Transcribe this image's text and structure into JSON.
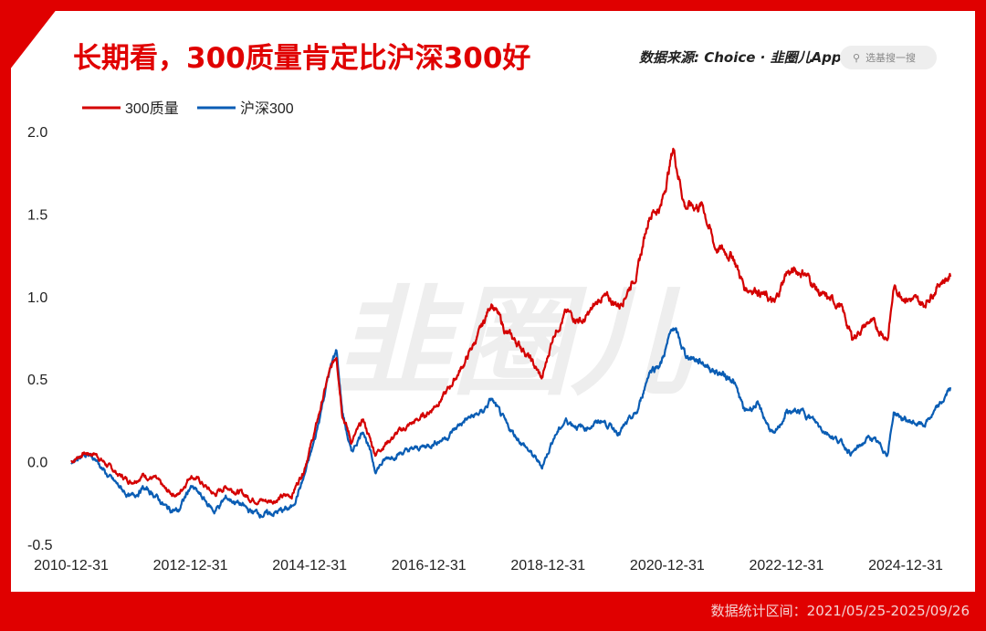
{
  "title": "长期看，300质量肯定比沪深300好",
  "source": {
    "label": "数据来源: Choice ·",
    "logo": "韭圈儿App"
  },
  "search": {
    "placeholder": "选基搜一搜"
  },
  "footer": "数据统计区间：2021/05/25-2025/09/26",
  "watermark": "韭圈儿",
  "colors": {
    "red": "#d40000",
    "blue": "#0a5db4",
    "accent": "#e00000"
  },
  "chart_data": {
    "type": "line",
    "title": "长期看，300质量肯定比沪深300好",
    "legend": "top-left",
    "ylim": [
      -0.5,
      2.0
    ],
    "yticks": [
      "2.0",
      "1.5",
      "1.0",
      "0.5",
      "0.0",
      "-0.5"
    ],
    "ytick_values": [
      2.0,
      1.5,
      1.0,
      0.5,
      0.0,
      -0.5
    ],
    "xlim": [
      2011.0,
      2025.8
    ],
    "xticks": [
      "2010-12-31",
      "2012-12-31",
      "2014-12-31",
      "2016-12-31",
      "2018-12-31",
      "2020-12-31",
      "2022-12-31",
      "2024-12-31"
    ],
    "xtick_values": [
      2011,
      2013,
      2015,
      2017,
      2019,
      2021,
      2023,
      2025
    ],
    "series": [
      {
        "name": "300质量",
        "color": "#d40000",
        "points": [
          [
            2011.0,
            0.0
          ],
          [
            2011.2,
            0.05
          ],
          [
            2011.4,
            0.05
          ],
          [
            2011.6,
            -0.02
          ],
          [
            2011.8,
            -0.08
          ],
          [
            2012.0,
            -0.12
          ],
          [
            2012.2,
            -0.08
          ],
          [
            2012.4,
            -0.1
          ],
          [
            2012.6,
            -0.18
          ],
          [
            2012.8,
            -0.2
          ],
          [
            2013.0,
            -0.08
          ],
          [
            2013.1,
            -0.1
          ],
          [
            2013.4,
            -0.2
          ],
          [
            2013.6,
            -0.15
          ],
          [
            2013.8,
            -0.18
          ],
          [
            2014.0,
            -0.22
          ],
          [
            2014.3,
            -0.24
          ],
          [
            2014.5,
            -0.22
          ],
          [
            2014.7,
            -0.2
          ],
          [
            2014.9,
            -0.05
          ],
          [
            2015.1,
            0.2
          ],
          [
            2015.3,
            0.5
          ],
          [
            2015.45,
            0.65
          ],
          [
            2015.55,
            0.3
          ],
          [
            2015.7,
            0.12
          ],
          [
            2015.9,
            0.25
          ],
          [
            2016.1,
            0.05
          ],
          [
            2016.3,
            0.12
          ],
          [
            2016.5,
            0.18
          ],
          [
            2016.8,
            0.25
          ],
          [
            2017.0,
            0.3
          ],
          [
            2017.3,
            0.42
          ],
          [
            2017.6,
            0.6
          ],
          [
            2017.9,
            0.82
          ],
          [
            2018.05,
            0.97
          ],
          [
            2018.3,
            0.78
          ],
          [
            2018.6,
            0.68
          ],
          [
            2018.9,
            0.5
          ],
          [
            2019.1,
            0.78
          ],
          [
            2019.3,
            0.9
          ],
          [
            2019.6,
            0.85
          ],
          [
            2019.9,
            1.0
          ],
          [
            2020.2,
            0.95
          ],
          [
            2020.5,
            1.15
          ],
          [
            2020.7,
            1.5
          ],
          [
            2020.9,
            1.55
          ],
          [
            2021.1,
            1.9
          ],
          [
            2021.3,
            1.55
          ],
          [
            2021.6,
            1.55
          ],
          [
            2021.8,
            1.3
          ],
          [
            2022.1,
            1.25
          ],
          [
            2022.3,
            1.05
          ],
          [
            2022.5,
            1.05
          ],
          [
            2022.8,
            0.95
          ],
          [
            2023.0,
            1.15
          ],
          [
            2023.3,
            1.15
          ],
          [
            2023.6,
            1.0
          ],
          [
            2023.9,
            0.95
          ],
          [
            2024.1,
            0.75
          ],
          [
            2024.4,
            0.85
          ],
          [
            2024.7,
            0.75
          ],
          [
            2024.8,
            1.05
          ],
          [
            2025.0,
            1.0
          ],
          [
            2025.3,
            0.95
          ],
          [
            2025.6,
            1.1
          ],
          [
            2025.75,
            1.12
          ]
        ]
      },
      {
        "name": "沪深300",
        "color": "#0a5db4",
        "points": [
          [
            2011.0,
            0.0
          ],
          [
            2011.2,
            0.05
          ],
          [
            2011.4,
            0.02
          ],
          [
            2011.6,
            -0.08
          ],
          [
            2011.8,
            -0.15
          ],
          [
            2012.0,
            -0.22
          ],
          [
            2012.2,
            -0.16
          ],
          [
            2012.4,
            -0.2
          ],
          [
            2012.6,
            -0.28
          ],
          [
            2012.8,
            -0.3
          ],
          [
            2013.0,
            -0.15
          ],
          [
            2013.1,
            -0.18
          ],
          [
            2013.4,
            -0.3
          ],
          [
            2013.6,
            -0.22
          ],
          [
            2013.8,
            -0.25
          ],
          [
            2014.0,
            -0.3
          ],
          [
            2014.3,
            -0.32
          ],
          [
            2014.5,
            -0.3
          ],
          [
            2014.7,
            -0.28
          ],
          [
            2014.9,
            -0.1
          ],
          [
            2015.1,
            0.15
          ],
          [
            2015.3,
            0.5
          ],
          [
            2015.45,
            0.68
          ],
          [
            2015.55,
            0.3
          ],
          [
            2015.7,
            0.05
          ],
          [
            2015.9,
            0.2
          ],
          [
            2016.1,
            -0.05
          ],
          [
            2016.3,
            0.02
          ],
          [
            2016.5,
            0.05
          ],
          [
            2016.8,
            0.08
          ],
          [
            2017.0,
            0.1
          ],
          [
            2017.3,
            0.15
          ],
          [
            2017.6,
            0.25
          ],
          [
            2017.9,
            0.3
          ],
          [
            2018.05,
            0.38
          ],
          [
            2018.3,
            0.22
          ],
          [
            2018.6,
            0.1
          ],
          [
            2018.9,
            -0.03
          ],
          [
            2019.1,
            0.15
          ],
          [
            2019.3,
            0.25
          ],
          [
            2019.6,
            0.2
          ],
          [
            2019.9,
            0.25
          ],
          [
            2020.2,
            0.18
          ],
          [
            2020.5,
            0.3
          ],
          [
            2020.7,
            0.55
          ],
          [
            2020.9,
            0.6
          ],
          [
            2021.1,
            0.82
          ],
          [
            2021.3,
            0.65
          ],
          [
            2021.6,
            0.6
          ],
          [
            2021.8,
            0.55
          ],
          [
            2022.1,
            0.5
          ],
          [
            2022.3,
            0.3
          ],
          [
            2022.5,
            0.35
          ],
          [
            2022.8,
            0.15
          ],
          [
            2023.0,
            0.3
          ],
          [
            2023.3,
            0.3
          ],
          [
            2023.6,
            0.2
          ],
          [
            2023.9,
            0.12
          ],
          [
            2024.1,
            0.05
          ],
          [
            2024.4,
            0.15
          ],
          [
            2024.7,
            0.05
          ],
          [
            2024.8,
            0.3
          ],
          [
            2025.0,
            0.25
          ],
          [
            2025.3,
            0.22
          ],
          [
            2025.6,
            0.35
          ],
          [
            2025.75,
            0.45
          ]
        ]
      }
    ]
  }
}
